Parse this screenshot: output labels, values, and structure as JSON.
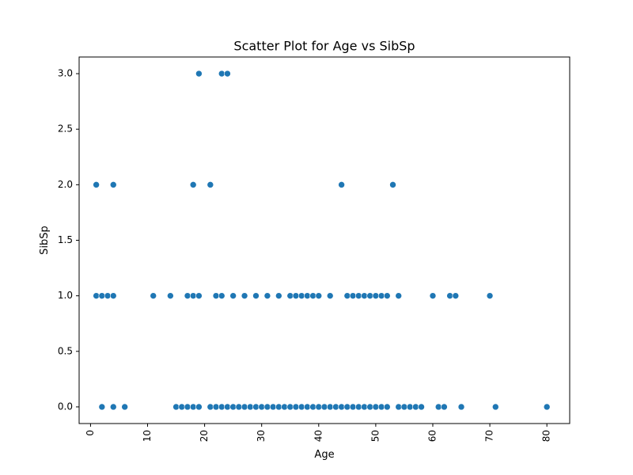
{
  "chart_data": {
    "type": "scatter",
    "title": "Scatter Plot for Age vs SibSp",
    "xlabel": "Age",
    "ylabel": "SibSp",
    "xlim": [
      -2,
      84
    ],
    "ylim": [
      -0.15,
      3.15
    ],
    "xticks": [
      0,
      10,
      20,
      30,
      40,
      50,
      60,
      70,
      80
    ],
    "yticks": [
      0.0,
      0.5,
      1.0,
      1.5,
      2.0,
      2.5,
      3.0
    ],
    "ytick_labels": [
      "0.0",
      "0.5",
      "1.0",
      "1.5",
      "2.0",
      "2.5",
      "3.0"
    ],
    "grid": false,
    "point_color": "#1f77b4",
    "points": [
      [
        19,
        3
      ],
      [
        23,
        3
      ],
      [
        24,
        3
      ],
      [
        1,
        2
      ],
      [
        4,
        2
      ],
      [
        18,
        2
      ],
      [
        21,
        2
      ],
      [
        44,
        2
      ],
      [
        53,
        2
      ],
      [
        1,
        1
      ],
      [
        2,
        1
      ],
      [
        3,
        1
      ],
      [
        4,
        1
      ],
      [
        11,
        1
      ],
      [
        14,
        1
      ],
      [
        17,
        1
      ],
      [
        18,
        1
      ],
      [
        19,
        1
      ],
      [
        22,
        1
      ],
      [
        23,
        1
      ],
      [
        25,
        1
      ],
      [
        27,
        1
      ],
      [
        29,
        1
      ],
      [
        31,
        1
      ],
      [
        33,
        1
      ],
      [
        35,
        1
      ],
      [
        36,
        1
      ],
      [
        37,
        1
      ],
      [
        38,
        1
      ],
      [
        39,
        1
      ],
      [
        40,
        1
      ],
      [
        42,
        1
      ],
      [
        45,
        1
      ],
      [
        46,
        1
      ],
      [
        47,
        1
      ],
      [
        48,
        1
      ],
      [
        49,
        1
      ],
      [
        50,
        1
      ],
      [
        51,
        1
      ],
      [
        52,
        1
      ],
      [
        54,
        1
      ],
      [
        60,
        1
      ],
      [
        63,
        1
      ],
      [
        64,
        1
      ],
      [
        70,
        1
      ],
      [
        2,
        0
      ],
      [
        4,
        0
      ],
      [
        6,
        0
      ],
      [
        15,
        0
      ],
      [
        16,
        0
      ],
      [
        17,
        0
      ],
      [
        18,
        0
      ],
      [
        19,
        0
      ],
      [
        21,
        0
      ],
      [
        22,
        0
      ],
      [
        23,
        0
      ],
      [
        24,
        0
      ],
      [
        25,
        0
      ],
      [
        26,
        0
      ],
      [
        27,
        0
      ],
      [
        28,
        0
      ],
      [
        29,
        0
      ],
      [
        30,
        0
      ],
      [
        31,
        0
      ],
      [
        32,
        0
      ],
      [
        33,
        0
      ],
      [
        34,
        0
      ],
      [
        35,
        0
      ],
      [
        36,
        0
      ],
      [
        37,
        0
      ],
      [
        38,
        0
      ],
      [
        39,
        0
      ],
      [
        40,
        0
      ],
      [
        41,
        0
      ],
      [
        42,
        0
      ],
      [
        43,
        0
      ],
      [
        44,
        0
      ],
      [
        45,
        0
      ],
      [
        46,
        0
      ],
      [
        47,
        0
      ],
      [
        48,
        0
      ],
      [
        49,
        0
      ],
      [
        50,
        0
      ],
      [
        51,
        0
      ],
      [
        52,
        0
      ],
      [
        54,
        0
      ],
      [
        55,
        0
      ],
      [
        56,
        0
      ],
      [
        57,
        0
      ],
      [
        58,
        0
      ],
      [
        61,
        0
      ],
      [
        62,
        0
      ],
      [
        65,
        0
      ],
      [
        71,
        0
      ],
      [
        80,
        0
      ]
    ]
  }
}
